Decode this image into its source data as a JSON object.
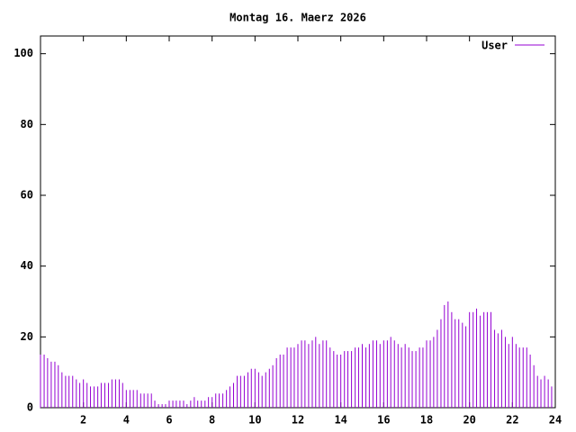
{
  "chart_data": {
    "type": "impulse",
    "title": "Montag 16. Maerz 2026",
    "x": [
      0,
      0.17,
      0.33,
      0.5,
      0.67,
      0.83,
      1,
      1.17,
      1.33,
      1.5,
      1.67,
      1.83,
      2,
      2.17,
      2.33,
      2.5,
      2.67,
      2.83,
      3,
      3.17,
      3.33,
      3.5,
      3.67,
      3.83,
      4,
      4.17,
      4.33,
      4.5,
      4.67,
      4.83,
      5,
      5.17,
      5.33,
      5.5,
      5.67,
      5.83,
      6,
      6.17,
      6.33,
      6.5,
      6.67,
      6.83,
      7,
      7.17,
      7.33,
      7.5,
      7.67,
      7.83,
      8,
      8.17,
      8.33,
      8.5,
      8.67,
      8.83,
      9,
      9.17,
      9.33,
      9.5,
      9.67,
      9.83,
      10,
      10.17,
      10.33,
      10.5,
      10.67,
      10.83,
      11,
      11.17,
      11.33,
      11.5,
      11.67,
      11.83,
      12,
      12.17,
      12.33,
      12.5,
      12.67,
      12.83,
      13,
      13.17,
      13.33,
      13.5,
      13.67,
      13.83,
      14,
      14.17,
      14.33,
      14.5,
      14.67,
      14.83,
      15,
      15.17,
      15.33,
      15.5,
      15.67,
      15.83,
      16,
      16.17,
      16.33,
      16.5,
      16.67,
      16.83,
      17,
      17.17,
      17.33,
      17.5,
      17.67,
      17.83,
      18,
      18.17,
      18.33,
      18.5,
      18.67,
      18.83,
      19,
      19.17,
      19.33,
      19.5,
      19.67,
      19.83,
      20,
      20.17,
      20.33,
      20.5,
      20.67,
      20.83,
      21,
      21.17,
      21.33,
      21.5,
      21.67,
      21.83,
      22,
      22.17,
      22.33,
      22.5,
      22.67,
      22.83,
      23,
      23.17,
      23.33,
      23.5,
      23.67,
      23.83
    ],
    "series": [
      {
        "name": "User",
        "color": "#9400d3",
        "values": [
          15,
          15,
          14,
          13,
          13,
          12,
          10,
          9,
          9,
          9,
          8,
          7,
          8,
          7,
          6,
          6,
          6,
          7,
          7,
          7,
          8,
          8,
          8,
          7,
          5,
          5,
          5,
          5,
          4,
          4,
          4,
          4,
          2,
          1,
          1,
          1,
          2,
          2,
          2,
          2,
          2,
          1,
          2,
          3,
          2,
          2,
          2,
          3,
          3,
          4,
          4,
          4,
          5,
          6,
          7,
          9,
          9,
          9,
          10,
          11,
          11,
          10,
          9,
          10,
          11,
          12,
          14,
          15,
          15,
          17,
          17,
          17,
          18,
          19,
          19,
          18,
          19,
          20,
          18,
          19,
          19,
          17,
          16,
          15,
          15,
          16,
          16,
          16,
          17,
          17,
          18,
          17,
          18,
          19,
          19,
          18,
          19,
          19,
          20,
          19,
          18,
          17,
          18,
          17,
          16,
          16,
          17,
          17,
          19,
          19,
          20,
          22,
          25,
          29,
          30,
          27,
          25,
          25,
          24,
          23,
          27,
          27,
          28,
          26,
          27,
          27,
          27,
          22,
          21,
          22,
          20,
          18,
          20,
          18,
          17,
          17,
          17,
          15,
          12,
          9,
          8,
          9,
          8,
          6
        ]
      }
    ],
    "xlim": [
      0,
      24
    ],
    "xticks": [
      2,
      4,
      6,
      8,
      10,
      12,
      14,
      16,
      18,
      20,
      22,
      24
    ],
    "ylim": [
      0,
      105
    ],
    "yticks": [
      0,
      20,
      40,
      60,
      80,
      100
    ]
  }
}
